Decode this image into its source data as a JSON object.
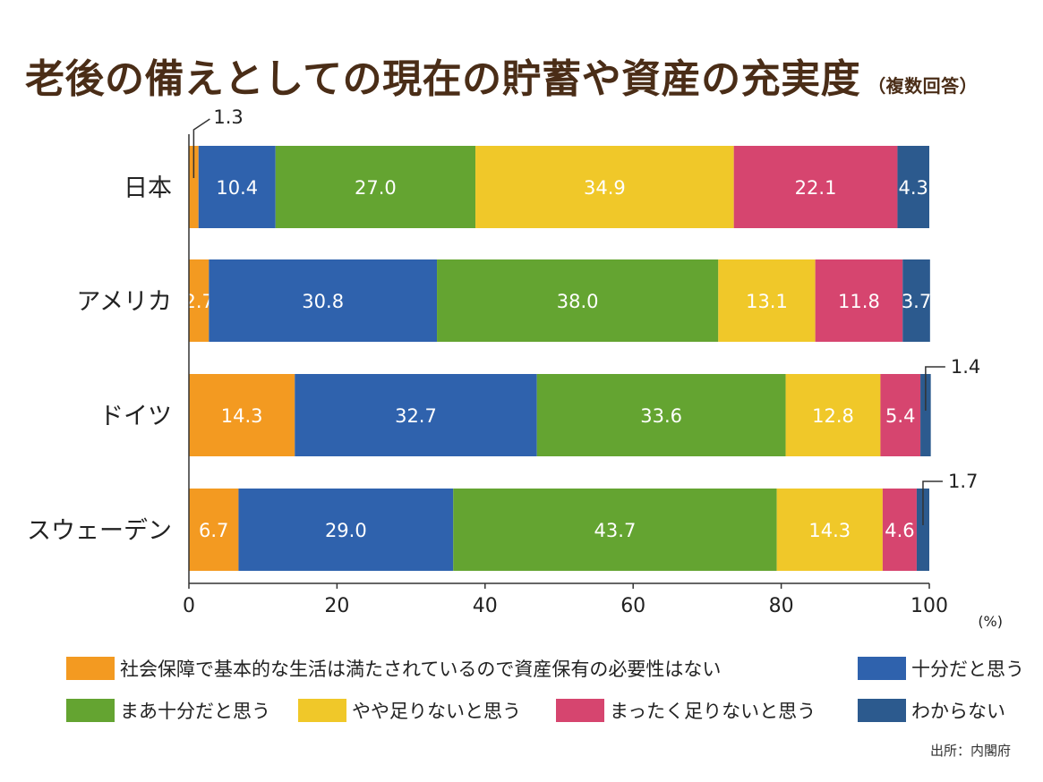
{
  "title": "老後の備えとしての現在の貯蓄や資産の充実度",
  "subtitle": "（複数回答）",
  "source": "出所：内閣府",
  "colors": {
    "orange": "#f39a21",
    "blue": "#2f62ad",
    "green": "#64a431",
    "yellow": "#f0c829",
    "pink": "#d6456f",
    "darkblue": "#2c5a8e"
  },
  "chart_data": {
    "type": "bar",
    "orientation": "horizontal",
    "stacked": true,
    "categories": [
      "日本",
      "アメリカ",
      "ドイツ",
      "スウェーデン"
    ],
    "series": [
      {
        "name": "社会保障で基本的な生活は満たされているので資産保有の必要性はない",
        "color": "#f39a21",
        "values": [
          1.3,
          2.7,
          14.3,
          6.7
        ]
      },
      {
        "name": "十分だと思う",
        "color": "#2f62ad",
        "values": [
          10.4,
          30.8,
          32.7,
          29.0
        ]
      },
      {
        "name": "まあ十分だと思う",
        "color": "#64a431",
        "values": [
          27.0,
          38.0,
          33.6,
          43.7
        ]
      },
      {
        "name": "やや足りないと思う",
        "color": "#f0c829",
        "values": [
          34.9,
          13.1,
          12.8,
          14.3
        ]
      },
      {
        "name": "まったく足りないと思う",
        "color": "#d6456f",
        "values": [
          22.1,
          11.8,
          5.4,
          4.6
        ]
      },
      {
        "name": "わからない",
        "color": "#2c5a8e",
        "values": [
          4.3,
          3.7,
          1.4,
          1.7
        ]
      }
    ],
    "xlim": [
      0,
      100
    ],
    "xticks": [
      "0",
      "20",
      "40",
      "60",
      "80",
      "100"
    ],
    "xunit": "(%)",
    "grid": false,
    "legend_position": "bottom"
  }
}
